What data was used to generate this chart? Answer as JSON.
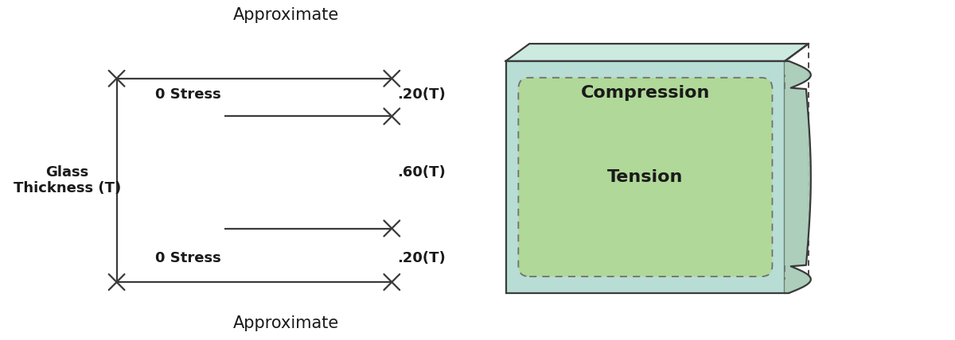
{
  "title_top": "Approximate",
  "title_bottom": "Approximate",
  "label_glass": "Glass\nThickness (T)",
  "label_0stress_top": "0 Stress",
  "label_0stress_bot": "0 Stress",
  "label_020_top": ".20(T)",
  "label_060": ".60(T)",
  "label_020_bot": ".20(T)",
  "label_compression": "Compression",
  "label_tension": "Tension",
  "bg_color": "#ffffff",
  "line_color": "#3a3a3a",
  "glass_outer_color": "#b8ddd4",
  "glass_top_color": "#cceae0",
  "glass_inner_color": "#b0d898",
  "glass_side_color": "#a8ccb8",
  "glass_wavy_color": "#a8ccb8",
  "dashed_color": "#707070",
  "text_color": "#1a1a1a",
  "title_fontsize": 14,
  "label_fontsize": 12,
  "region_label_fontsize": 14,
  "lw": 1.6
}
